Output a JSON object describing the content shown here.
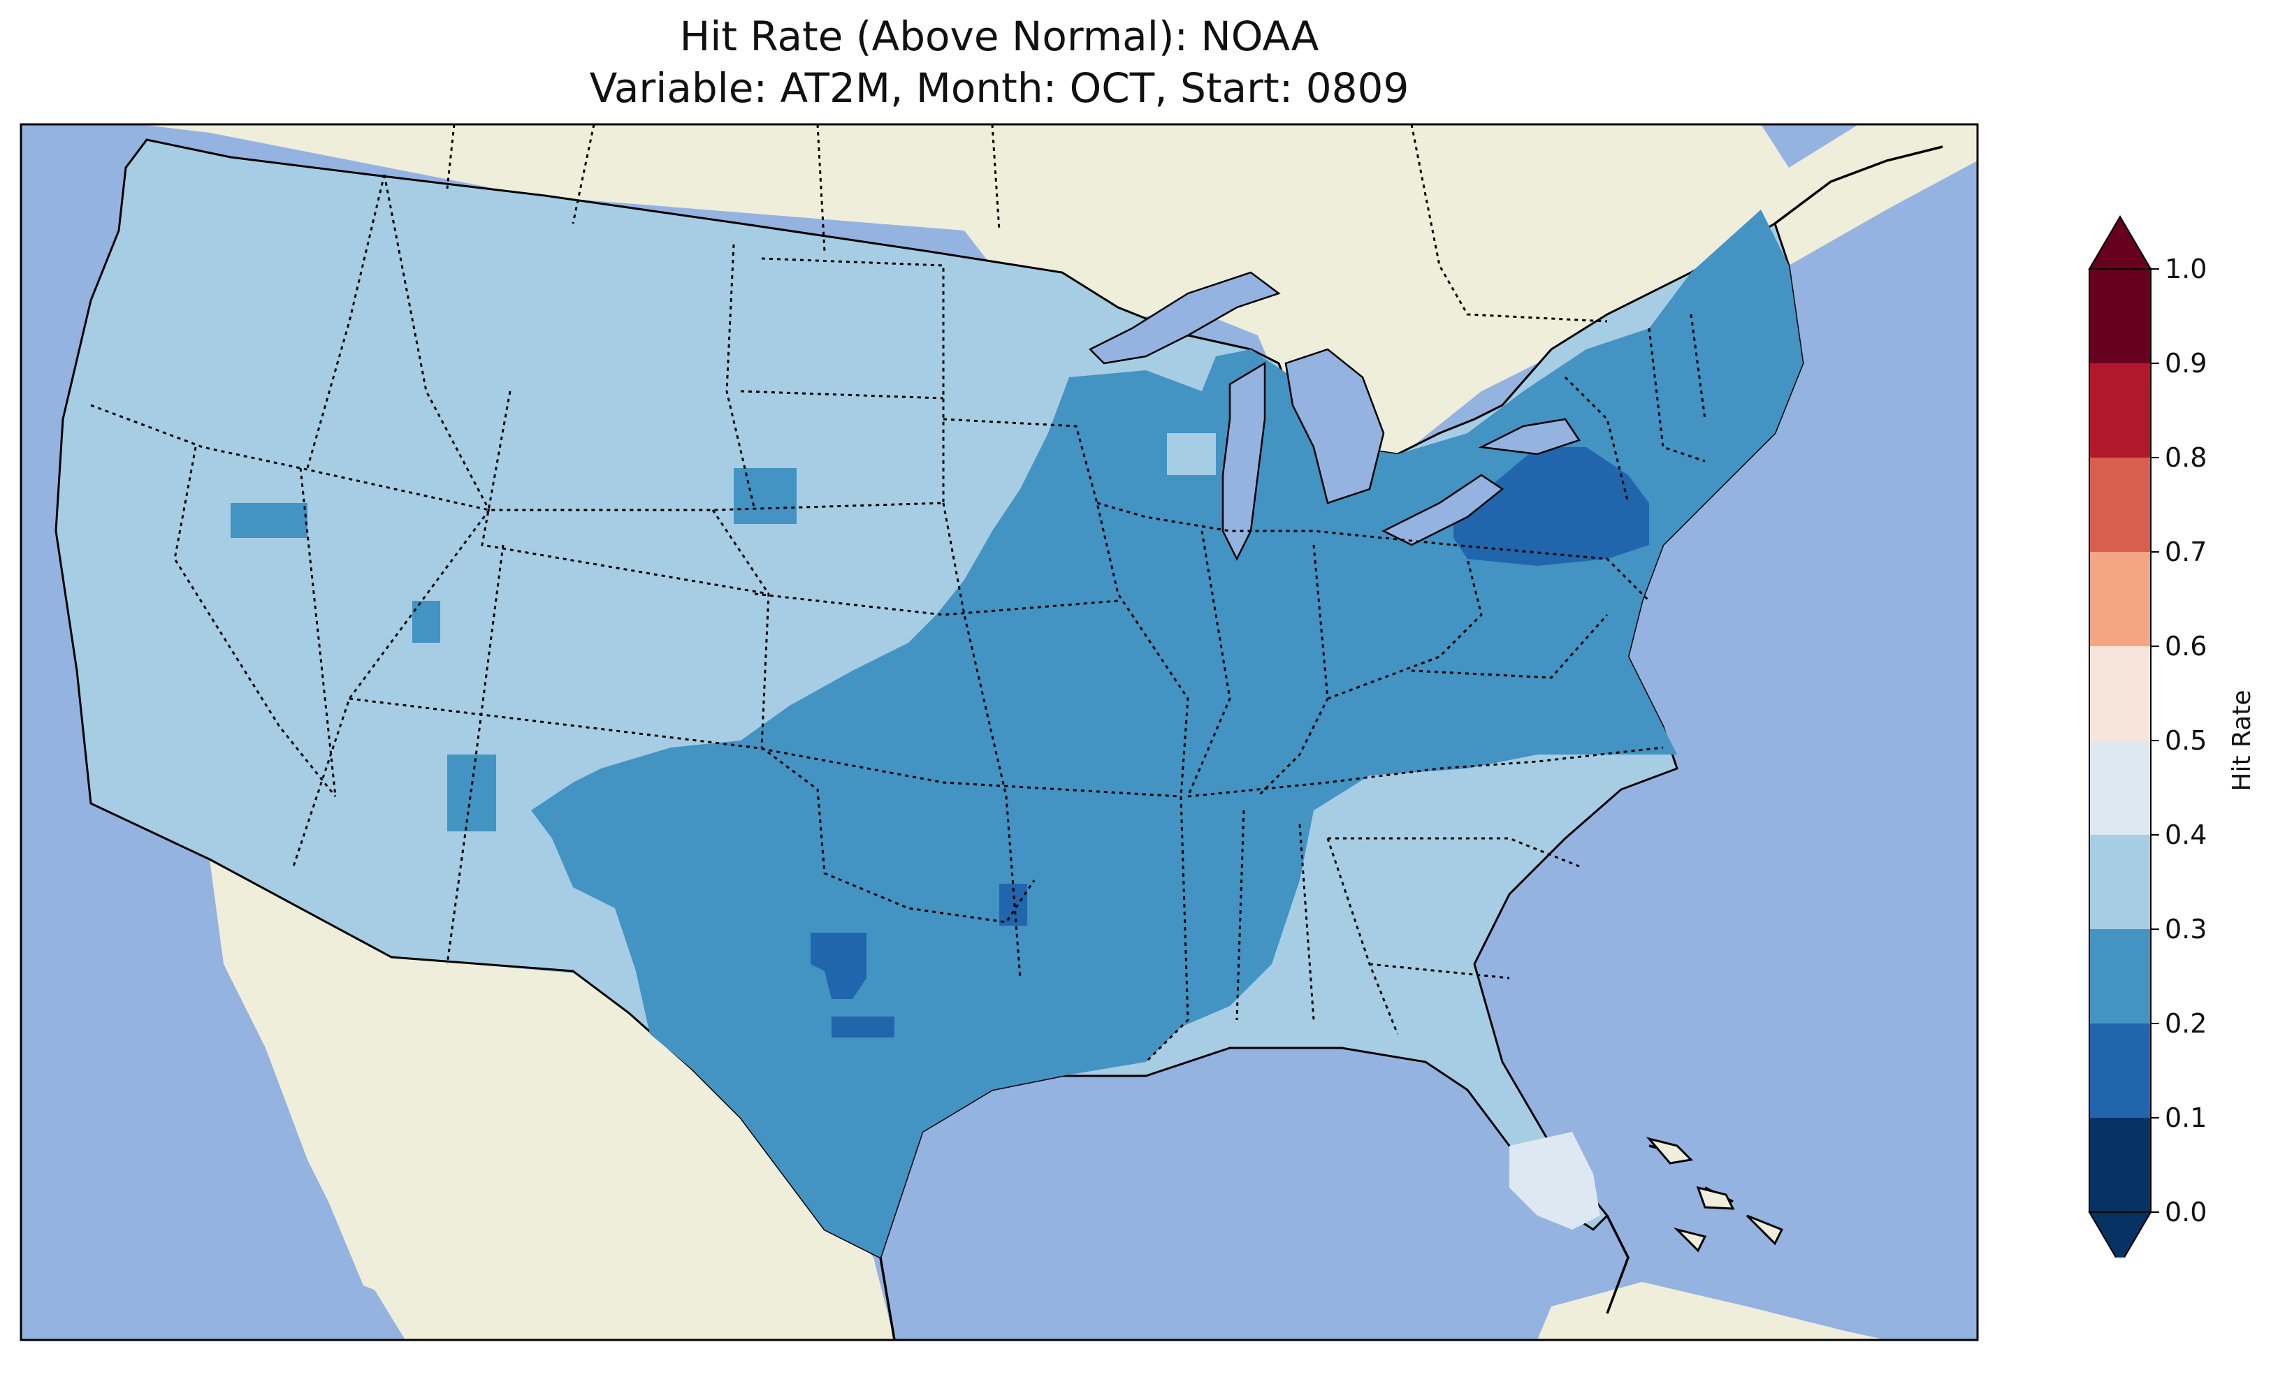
{
  "title": {
    "line1": "Hit Rate (Above Normal): NOAA",
    "line2": "Variable: AT2M, Month: OCT, Start: 0809"
  },
  "colors": {
    "ocean": "#95b3e0",
    "land": "#efeedb",
    "border": "#000000",
    "bins": [
      "#063264",
      "#2166ac",
      "#4393c3",
      "#a6cde3",
      "#dde8f2",
      "#f7e4da",
      "#f4a582",
      "#d6604d",
      "#b2182b",
      "#67001f"
    ]
  },
  "chart_data": {
    "type": "heatmap",
    "legend": {
      "label": "Hit Rate",
      "ticks": [
        "0.0",
        "0.1",
        "0.2",
        "0.3",
        "0.4",
        "0.5",
        "0.6",
        "0.7",
        "0.8",
        "0.9",
        "1.0"
      ],
      "range": [
        0.0,
        1.0
      ],
      "extend": "both",
      "placement": "right"
    },
    "regions": [
      {
        "area": "Western US (CA, OR, WA, NV, ID, UT, AZ, MT, WY, CO, NM, ND, SD)",
        "hit_rate_bin": [
          0.3,
          0.4
        ]
      },
      {
        "area": "Great Plains, Texas, Midwest, Ohio Valley, Mid-Atlantic, New England",
        "hit_rate_bin": [
          0.2,
          0.3
        ]
      },
      {
        "area": "Pennsylvania / New York core",
        "hit_rate_bin": [
          0.1,
          0.2
        ]
      },
      {
        "area": "Southeast US, Georgia, Carolinas, Gulf Coast",
        "hit_rate_bin": [
          0.3,
          0.4
        ]
      },
      {
        "area": "South Florida",
        "hit_rate_bin": [
          0.4,
          0.5
        ]
      }
    ]
  }
}
